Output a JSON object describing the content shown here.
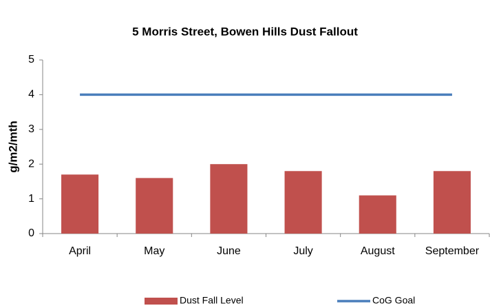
{
  "chart_data": {
    "type": "bar",
    "title": "5 Morris Street, Bowen Hills Dust Fallout",
    "y_label": "g/m2/mth",
    "categories": [
      "April",
      "May",
      "June",
      "July",
      "August",
      "September"
    ],
    "series": [
      {
        "name": "Dust Fall Level",
        "type": "bar",
        "color": "#c0504d",
        "values": [
          1.7,
          1.6,
          2.0,
          1.8,
          1.1,
          1.8
        ]
      },
      {
        "name": "CoG Goal",
        "type": "line",
        "color": "#4a7ebb",
        "values": [
          4,
          4,
          4,
          4,
          4,
          4
        ]
      }
    ],
    "ylim": [
      0,
      5
    ],
    "yticks": [
      0,
      1,
      2,
      3,
      4,
      5
    ],
    "grid": false,
    "legend": "bottom"
  }
}
